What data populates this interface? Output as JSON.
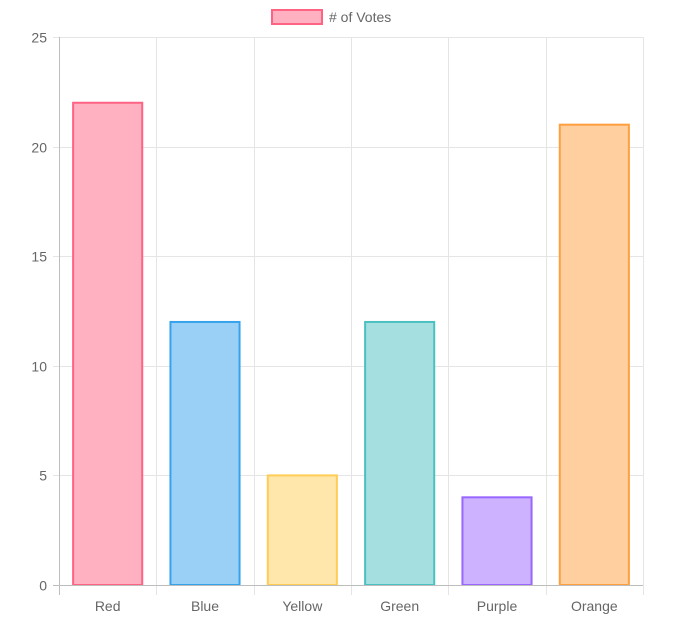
{
  "chart_data": {
    "type": "bar",
    "title": "",
    "xlabel": "",
    "ylabel": "",
    "categories": [
      "Red",
      "Blue",
      "Yellow",
      "Green",
      "Purple",
      "Orange"
    ],
    "series": [
      {
        "name": "# of Votes",
        "values": [
          22,
          12,
          5,
          12,
          4,
          21
        ]
      }
    ],
    "ylim": [
      0,
      25
    ],
    "yticks": [
      "0",
      "5",
      "10",
      "15",
      "20",
      "25"
    ],
    "legend": {
      "position": "top",
      "label": "# of Votes"
    },
    "grid": true,
    "colors": {
      "fills": [
        "#ffb1c1",
        "#9ad0f5",
        "#ffe6aa",
        "#a5dfdf",
        "#ccb2ff",
        "#ffcf9f"
      ],
      "borders": [
        "#ff6384",
        "#36a2eb",
        "#ffcd56",
        "#4bc0c0",
        "#9966ff",
        "#ff9f40"
      ],
      "grid": "#e5e5e5",
      "axis": "#bdbdbd",
      "text": "#666666"
    }
  }
}
